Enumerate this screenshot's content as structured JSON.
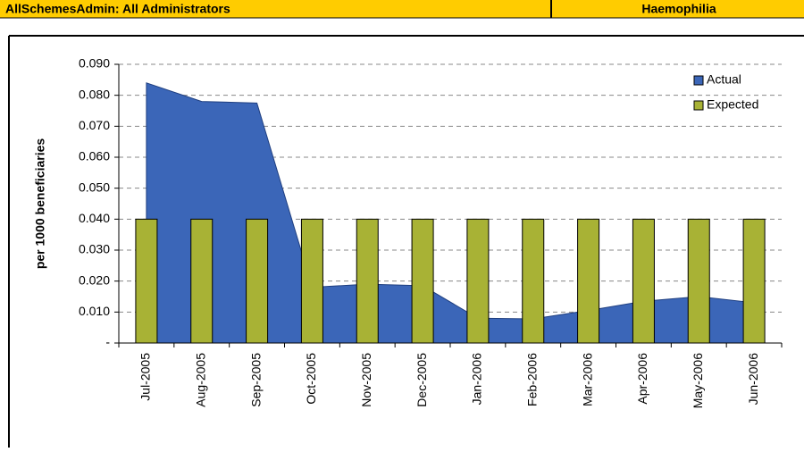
{
  "header": {
    "left": "AllSchemesAdmin: All Administrators",
    "right": "Haemophilia"
  },
  "chart_data": {
    "type": "combo",
    "y_axis_label": "per 1000 beneficiaries",
    "categories": [
      "Jul-2005",
      "Aug-2005",
      "Sep-2005",
      "Oct-2005",
      "Nov-2005",
      "Dec-2005",
      "Jan-2006",
      "Feb-2006",
      "Mar-2006",
      "Apr-2006",
      "May-2006",
      "Jun-2006"
    ],
    "series": [
      {
        "name": "Actual",
        "type": "area",
        "color": "#3b66b8",
        "values": [
          0.084,
          0.078,
          0.0775,
          0.018,
          0.019,
          0.0185,
          0.008,
          0.0078,
          0.0105,
          0.0135,
          0.015,
          0.013
        ]
      },
      {
        "name": "Expected",
        "type": "bar",
        "color": "#a8b235",
        "values": [
          0.04,
          0.04,
          0.04,
          0.04,
          0.04,
          0.04,
          0.04,
          0.04,
          0.04,
          0.04,
          0.04,
          0.04
        ]
      }
    ],
    "ylim": [
      0,
      0.09
    ],
    "yticks": [
      {
        "value": 0,
        "label": "-"
      },
      {
        "value": 0.01,
        "label": "0.010"
      },
      {
        "value": 0.02,
        "label": "0.020"
      },
      {
        "value": 0.03,
        "label": "0.030"
      },
      {
        "value": 0.04,
        "label": "0.040"
      },
      {
        "value": 0.05,
        "label": "0.050"
      },
      {
        "value": 0.06,
        "label": "0.060"
      },
      {
        "value": 0.07,
        "label": "0.070"
      },
      {
        "value": 0.08,
        "label": "0.080"
      },
      {
        "value": 0.09,
        "label": "0.090"
      }
    ],
    "grid": true,
    "legend": "top-right"
  }
}
